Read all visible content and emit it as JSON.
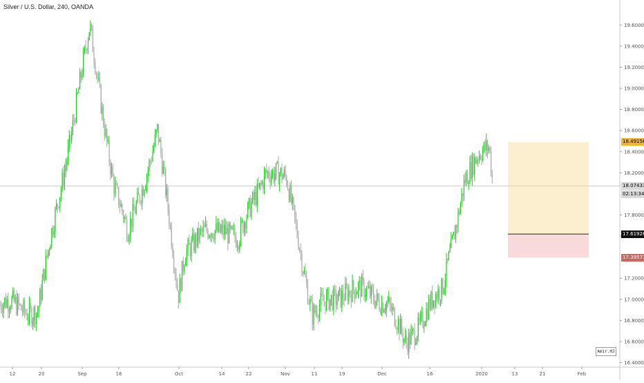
{
  "header": {
    "title": "Silver / U.S. Dollar, 240, OANDA"
  },
  "signature": "Amir.HJ",
  "price_labels": {
    "target": "18.49156",
    "current": "18.07433",
    "countdown": "02:13:34",
    "entry": "17.61926",
    "stop": "17.39573"
  },
  "colors": {
    "up_candle": "#22c922",
    "down_candle": "#a8a8a8",
    "target_zone": "#fbefd0",
    "stop_zone": "#f8dada",
    "target_label": "#f3b52c",
    "current_label": "#d8d8d8",
    "entry_label": "#111111",
    "stop_label": "#c8685e"
  },
  "chart_data": {
    "type": "candlestick",
    "symbol": "Silver / U.S. Dollar",
    "interval": "240",
    "source": "OANDA",
    "x_ticks": [
      "12",
      "20",
      "Sep",
      "16",
      "Oct",
      "14",
      "22",
      "Nov",
      "11",
      "19",
      "Dec",
      "16",
      "2020",
      "13",
      "21",
      "Feb"
    ],
    "y_ticks": [
      "19.60000",
      "19.40000",
      "19.20000",
      "19.00000",
      "18.80000",
      "18.60000",
      "18.40000",
      "18.20000",
      "17.80000",
      "17.60000",
      "17.20000",
      "17.00000",
      "16.80000",
      "16.60000",
      "16.40000"
    ],
    "ylim": [
      16.39,
      19.72
    ],
    "price_path": [
      [
        "12",
        16.95
      ],
      [
        "20",
        16.9
      ],
      [
        "Sep",
        19.55
      ],
      [
        "16",
        18.1
      ],
      [
        "16",
        17.6
      ],
      [
        "16",
        18.6
      ],
      [
        "Oct",
        17.05
      ],
      [
        "Oct",
        17.5
      ],
      [
        "14",
        17.7
      ],
      [
        "22",
        17.55
      ],
      [
        "22",
        18.25
      ],
      [
        "Nov",
        18.1
      ],
      [
        "Nov",
        17.6
      ],
      [
        "11",
        16.85
      ],
      [
        "19",
        17.1
      ],
      [
        "Dec",
        17.0
      ],
      [
        "Dec",
        16.55
      ],
      [
        "16",
        16.95
      ],
      [
        "16",
        17.05
      ],
      [
        "2020",
        18.15
      ],
      [
        "2020",
        18.45
      ],
      [
        "2020",
        18.07
      ]
    ],
    "position": {
      "target": 18.49156,
      "entry": 17.61926,
      "stop": 17.39573,
      "current": 18.07433
    }
  }
}
